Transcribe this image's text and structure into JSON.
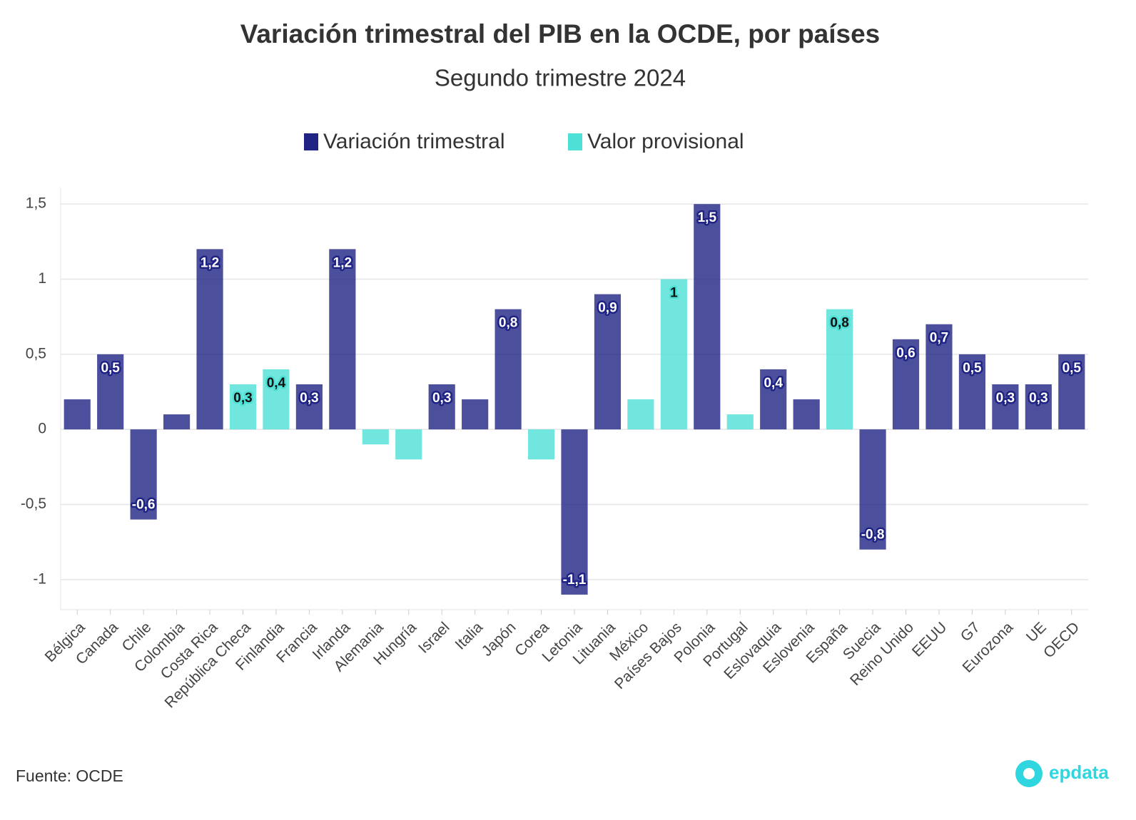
{
  "chart_data": {
    "type": "bar",
    "title": "Variación trimestral del PIB en la OCDE, por países",
    "subtitle": "Segundo trimestre 2024",
    "source": "Fuente: OCDE",
    "logo": "epdata",
    "categories": [
      "Bélgica",
      "Canada",
      "Chile",
      "Colombia",
      "Costa Rica",
      "República Checa",
      "Finlandia",
      "Francia",
      "Irlanda",
      "Alemania",
      "Hungría",
      "Israel",
      "Italia",
      "Japón",
      "Corea",
      "Letonia",
      "Lituania",
      "México",
      "Países Bajos",
      "Polonia",
      "Portugal",
      "Eslovaquia",
      "Eslovenia",
      "España",
      "Suecia",
      "Reino Unido",
      "EEUU",
      "G7",
      "Eurozona",
      "UE",
      "OECD"
    ],
    "series": [
      {
        "name": "Variación trimestral",
        "color": "#1f2383",
        "values": [
          0.2,
          0.5,
          -0.6,
          0.1,
          1.2,
          null,
          null,
          0.3,
          1.2,
          null,
          null,
          0.3,
          0.2,
          0.8,
          null,
          -1.1,
          0.9,
          null,
          null,
          1.5,
          null,
          0.4,
          0.2,
          null,
          -0.8,
          0.6,
          0.7,
          0.5,
          0.3,
          0.3,
          0.5
        ],
        "value_labels": [
          null,
          "0,5",
          "-0,6",
          null,
          "1,2",
          null,
          null,
          "0,3",
          "1,2",
          null,
          null,
          "0,3",
          null,
          "0,8",
          null,
          "-1,1",
          "0,9",
          null,
          null,
          "1,5",
          null,
          "0,4",
          null,
          null,
          "-0,8",
          "0,6",
          "0,7",
          "0,5",
          "0,3",
          "0,3",
          "0,5"
        ]
      },
      {
        "name": "Valor provisional",
        "color": "#4de0d6",
        "values": [
          null,
          null,
          null,
          null,
          null,
          0.3,
          0.4,
          null,
          null,
          -0.1,
          -0.2,
          null,
          null,
          null,
          -0.2,
          null,
          null,
          0.2,
          1,
          null,
          0.1,
          null,
          null,
          0.8,
          null,
          null,
          null,
          null,
          null,
          null,
          null
        ],
        "value_labels": [
          null,
          null,
          null,
          null,
          null,
          "0,3",
          "0,4",
          null,
          null,
          null,
          null,
          null,
          null,
          null,
          null,
          null,
          null,
          null,
          "1",
          null,
          null,
          null,
          null,
          "0,8",
          null,
          null,
          null,
          null,
          null,
          null,
          null
        ]
      }
    ],
    "ylim": [
      -1.2,
      1.61
    ],
    "yticks": [
      {
        "value": -1,
        "label": "-1"
      },
      {
        "value": -0.5,
        "label": "-0,5"
      },
      0,
      {
        "value": 0.5,
        "label": "0,5"
      },
      1,
      {
        "value": 1.5,
        "label": "1,5"
      }
    ],
    "grid": true
  }
}
